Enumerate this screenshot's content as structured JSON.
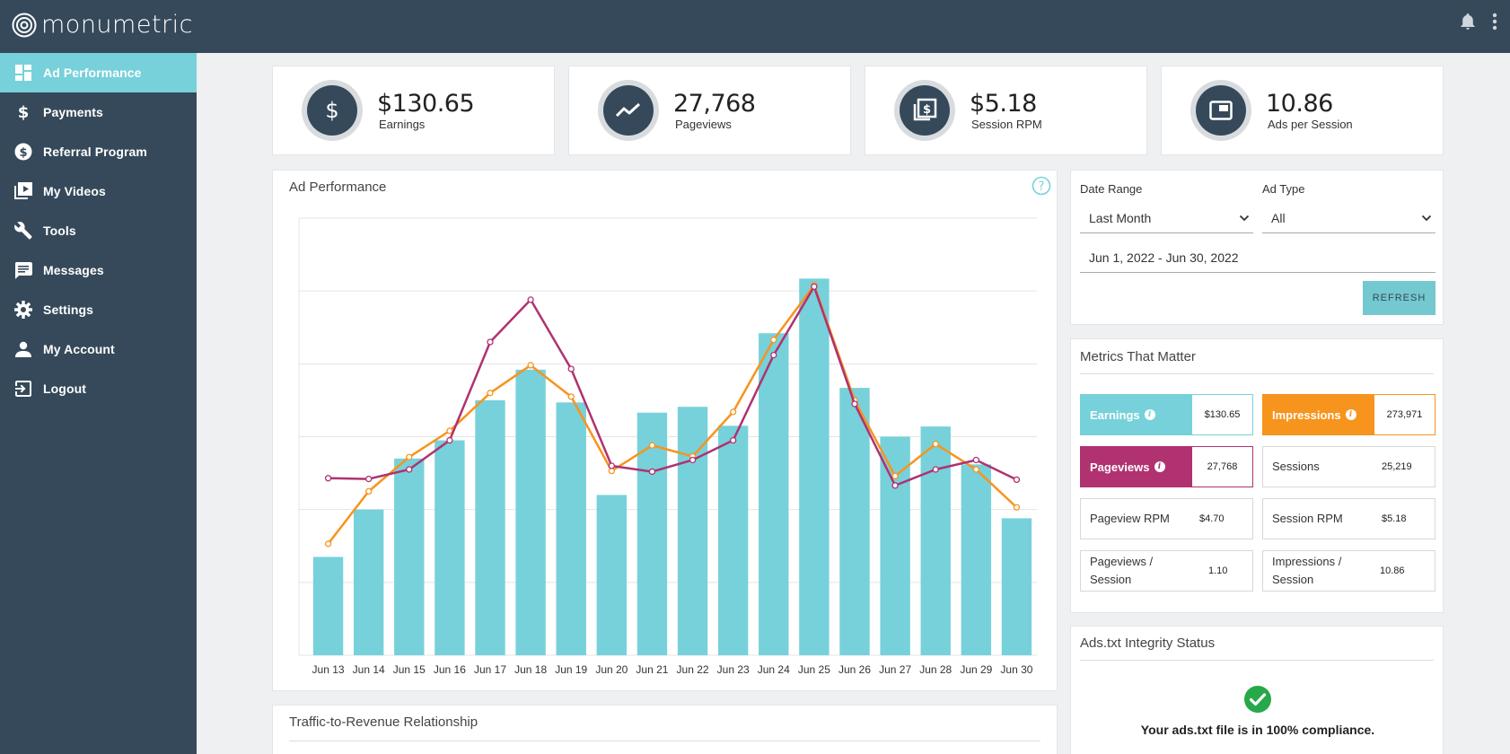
{
  "app": {
    "logo_text": "monumetric"
  },
  "sidebar": {
    "items": [
      {
        "label": "Ad Performance",
        "icon": "dashboard-icon"
      },
      {
        "label": "Payments",
        "icon": "dollar-icon"
      },
      {
        "label": "Referral Program",
        "icon": "coin-icon"
      },
      {
        "label": "My Videos",
        "icon": "video-library-icon"
      },
      {
        "label": "Tools",
        "icon": "wrench-icon"
      },
      {
        "label": "Messages",
        "icon": "message-icon"
      },
      {
        "label": "Settings",
        "icon": "gear-icon"
      },
      {
        "label": "My Account",
        "icon": "person-icon"
      },
      {
        "label": "Logout",
        "icon": "logout-icon"
      }
    ],
    "active_index": 0
  },
  "kpis": [
    {
      "value": "$130.65",
      "label": "Earnings",
      "icon": "dollar-icon"
    },
    {
      "value": "27,768",
      "label": "Pageviews",
      "icon": "trend-icon"
    },
    {
      "value": "$5.18",
      "label": "Session RPM",
      "icon": "money-stack-icon"
    },
    {
      "value": "10.86",
      "label": "Ads per Session",
      "icon": "ad-window-icon"
    }
  ],
  "chart": {
    "title": "Ad Performance"
  },
  "chart_data": {
    "type": "bar",
    "categories": [
      "Jun 13",
      "Jun 14",
      "Jun 15",
      "Jun 16",
      "Jun 17",
      "Jun 18",
      "Jun 19",
      "Jun 20",
      "Jun 21",
      "Jun 22",
      "Jun 23",
      "Jun 24",
      "Jun 25",
      "Jun 26",
      "Jun 27",
      "Jun 28",
      "Jun 29",
      "Jun 30"
    ],
    "ylim": [
      0,
      6
    ],
    "grid": true,
    "series": [
      {
        "type": "bar",
        "color": "#77d1da",
        "values": [
          1.35,
          2.0,
          2.7,
          2.95,
          3.5,
          3.92,
          3.47,
          2.2,
          3.33,
          3.41,
          3.15,
          4.42,
          5.17,
          3.67,
          3.0,
          3.14,
          2.62,
          1.88
        ]
      },
      {
        "type": "line",
        "color": "#f7941d",
        "values": [
          1.53,
          2.25,
          2.72,
          3.08,
          3.6,
          3.98,
          3.55,
          2.53,
          2.88,
          2.73,
          3.34,
          4.33,
          5.08,
          3.5,
          2.46,
          2.9,
          2.55,
          2.03
        ]
      },
      {
        "type": "line",
        "color": "#b03271",
        "values": [
          2.43,
          2.42,
          2.55,
          2.95,
          4.3,
          4.88,
          3.93,
          2.6,
          2.52,
          2.68,
          2.95,
          4.12,
          5.06,
          3.45,
          2.33,
          2.55,
          2.68,
          2.41
        ]
      }
    ]
  },
  "filters": {
    "date_range_label": "Date Range",
    "date_range_value": "Last Month",
    "ad_type_label": "Ad Type",
    "ad_type_value": "All",
    "dates_text": "Jun 1, 2022 - Jun 30, 2022",
    "refresh_label": "REFRESH"
  },
  "metrics": {
    "title": "Metrics That Matter",
    "items": [
      {
        "name": "Earnings",
        "value": "$130.65",
        "style": "teal",
        "info": true
      },
      {
        "name": "Impressions",
        "value": "273,971",
        "style": "orange",
        "info": true
      },
      {
        "name": "Pageviews",
        "value": "27,768",
        "style": "magenta",
        "info": true
      },
      {
        "name": "Sessions",
        "value": "25,219",
        "style": "plain",
        "info": false
      },
      {
        "name": "Pageview RPM",
        "value": "$4.70",
        "style": "plain",
        "info": false
      },
      {
        "name": "Session RPM",
        "value": "$5.18",
        "style": "plain",
        "info": false
      },
      {
        "name": "Pageviews / Session",
        "value": "1.10",
        "style": "plain",
        "info": false
      },
      {
        "name": "Impressions / Session",
        "value": "10.86",
        "style": "plain",
        "info": false
      }
    ]
  },
  "ads_txt": {
    "title": "Ads.txt Integrity Status",
    "message": "Your ads.txt file is in 100% compliance."
  },
  "traffic": {
    "title": "Traffic-to-Revenue Relationship"
  },
  "colors": {
    "navy": "#35495a",
    "teal": "#77d1da",
    "orange": "#f7941d",
    "magenta": "#b03271",
    "success": "#27a84a"
  }
}
